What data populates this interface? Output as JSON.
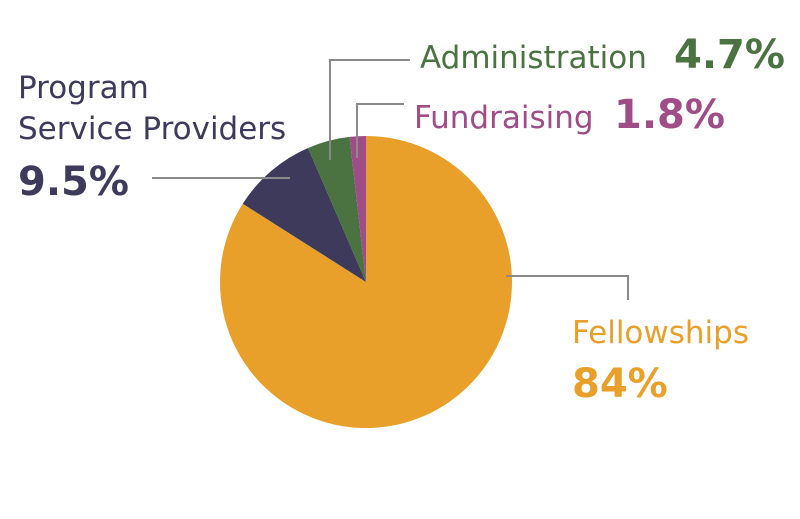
{
  "chart_data": {
    "type": "pie",
    "title": "",
    "slices": [
      {
        "label": "Fellowships",
        "value": 84,
        "display": "84%",
        "color": "#E8A02A"
      },
      {
        "label": "Program Service Providers",
        "label_lines": [
          "Program",
          "Service Providers"
        ],
        "value": 9.5,
        "display": "9.5%",
        "color": "#3D3A5C"
      },
      {
        "label": "Administration",
        "value": 4.7,
        "display": "4.7%",
        "color": "#4A7341"
      },
      {
        "label": "Fundraising",
        "value": 1.8,
        "display": "1.8%",
        "color": "#A04C86"
      }
    ],
    "start_angle_deg": 0,
    "direction": "clockwise",
    "legend": "none"
  }
}
